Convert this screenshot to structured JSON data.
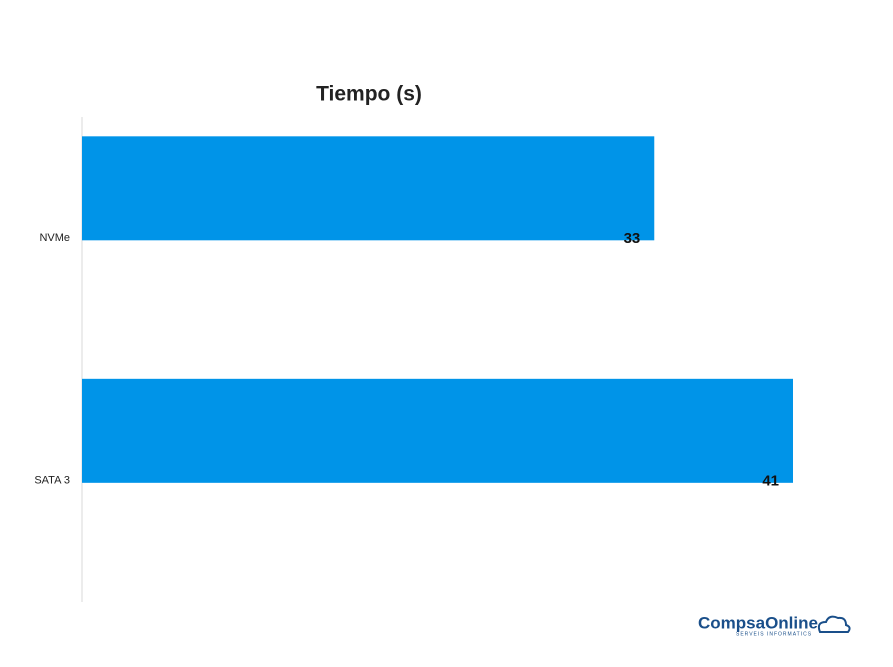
{
  "chart_data": {
    "type": "hbar",
    "title": "Tiempo (s)",
    "categories": [
      "NVMe",
      "SATA 3"
    ],
    "values": [
      33,
      41
    ],
    "color": "#0094e8"
  },
  "logo": {
    "name": "CompsaOnline",
    "tagline": "SERVEIS INFORMATICS"
  }
}
